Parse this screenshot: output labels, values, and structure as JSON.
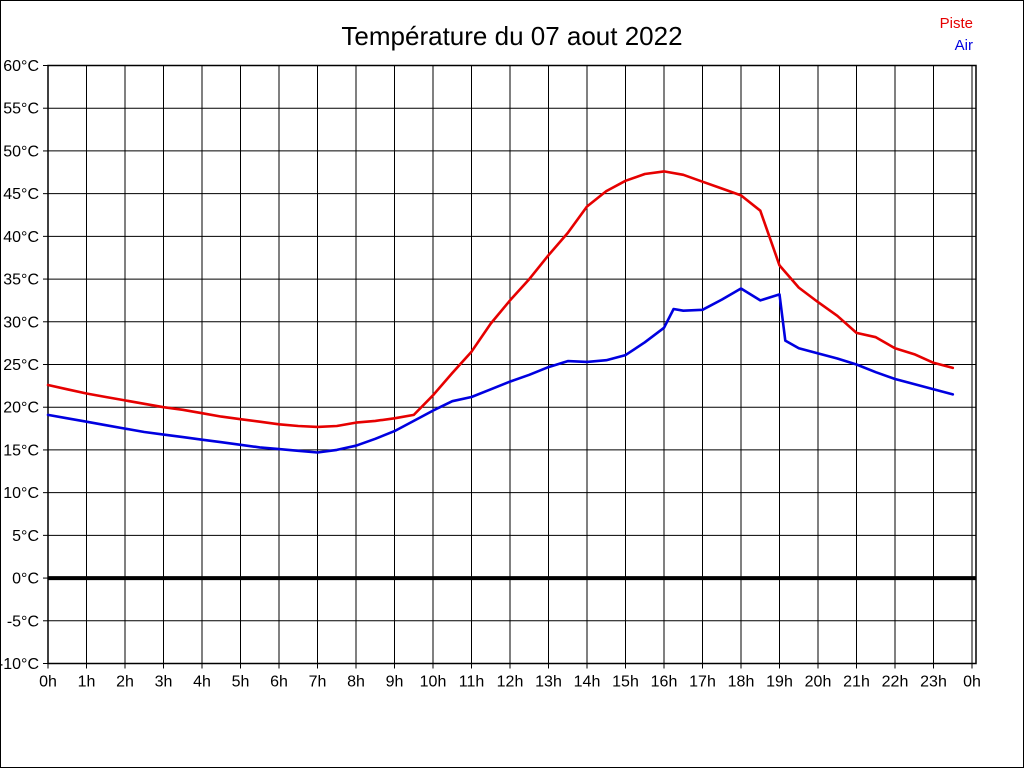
{
  "title": "Température du 07 aout 2022",
  "legend": [
    {
      "label": "Piste",
      "color": "#e60000"
    },
    {
      "label": "Air",
      "color": "#0000e0"
    }
  ],
  "colors": {
    "background": "#ffffff",
    "grid": "#000000",
    "axis": "#000000",
    "zero_line": "#000000",
    "piste": "#e60000",
    "air": "#0000e0"
  },
  "chart_data": {
    "type": "line",
    "title": "Température du 07 aout 2022",
    "xlabel": "",
    "ylabel": "",
    "x_unit": "h",
    "y_unit": "°C",
    "xlim": [
      0,
      24
    ],
    "ylim": [
      -10,
      60
    ],
    "grid": true,
    "zero_line_bold": true,
    "legend_position": "top-right",
    "y_ticks": [
      60,
      55,
      50,
      45,
      40,
      35,
      30,
      25,
      20,
      15,
      10,
      5,
      0,
      -5,
      -10
    ],
    "y_tick_labels": [
      "60°C",
      "55°C",
      "50°C",
      "45°C",
      "40°C",
      "35°C",
      "30°C",
      "25°C",
      "20°C",
      "15°C",
      "10°C",
      "5°C",
      "0°C",
      "-5°C",
      "-10°C"
    ],
    "x_ticks": [
      0,
      1,
      2,
      3,
      4,
      5,
      6,
      7,
      8,
      9,
      10,
      11,
      12,
      13,
      14,
      15,
      16,
      17,
      18,
      19,
      20,
      21,
      22,
      23,
      24
    ],
    "x_tick_labels": [
      "0h",
      "1h",
      "2h",
      "3h",
      "4h",
      "5h",
      "6h",
      "7h",
      "8h",
      "9h",
      "10h",
      "11h",
      "12h",
      "13h",
      "14h",
      "15h",
      "16h",
      "17h",
      "18h",
      "19h",
      "20h",
      "21h",
      "22h",
      "23h",
      "0h"
    ],
    "series": [
      {
        "name": "Piste",
        "color": "#e60000",
        "x": [
          0,
          0.5,
          1,
          1.5,
          2,
          2.5,
          3,
          3.5,
          4,
          4.5,
          5,
          5.5,
          6,
          6.5,
          7,
          7.5,
          8,
          8.5,
          9,
          9.5,
          10,
          10.5,
          11,
          11.5,
          12,
          12.5,
          13,
          13.5,
          14,
          14.5,
          15,
          15.5,
          16,
          16.5,
          17,
          17.5,
          18,
          18.5,
          19,
          19.5,
          20,
          20.5,
          21,
          21.5,
          22,
          22.5,
          23,
          23.5
        ],
        "values": [
          22.6,
          22.1,
          21.6,
          21.2,
          20.8,
          20.4,
          20.0,
          19.7,
          19.3,
          18.9,
          18.6,
          18.3,
          18.0,
          17.8,
          17.7,
          17.8,
          18.2,
          18.4,
          18.7,
          19.1,
          21.4,
          24.0,
          26.5,
          29.8,
          32.5,
          35.0,
          37.8,
          40.4,
          43.5,
          45.3,
          46.5,
          47.3,
          47.6,
          47.2,
          46.4,
          45.6,
          44.8,
          43.0,
          36.6,
          34.0,
          32.3,
          30.7,
          28.7,
          28.2,
          26.9,
          26.2,
          25.2,
          24.6
        ]
      },
      {
        "name": "Air",
        "color": "#0000e0",
        "x": [
          0,
          0.5,
          1,
          1.5,
          2,
          2.5,
          3,
          3.5,
          4,
          4.5,
          5,
          5.5,
          6,
          6.5,
          7,
          7.5,
          8,
          8.5,
          9,
          9.5,
          10,
          10.5,
          11,
          11.5,
          12,
          12.5,
          13,
          13.5,
          14,
          14.5,
          15,
          15.5,
          16,
          16.25,
          16.5,
          17,
          17.5,
          18,
          18.5,
          19,
          19.15,
          19.5,
          20,
          20.5,
          21,
          21.5,
          22,
          22.5,
          23,
          23.5
        ],
        "values": [
          19.1,
          18.7,
          18.3,
          17.9,
          17.5,
          17.1,
          16.8,
          16.5,
          16.2,
          15.9,
          15.6,
          15.3,
          15.1,
          14.9,
          14.7,
          15.0,
          15.5,
          16.3,
          17.2,
          18.4,
          19.6,
          20.7,
          21.2,
          22.1,
          23.0,
          23.8,
          24.7,
          25.4,
          25.3,
          25.5,
          26.1,
          27.6,
          29.3,
          31.5,
          31.3,
          31.4,
          32.6,
          33.9,
          32.5,
          33.2,
          27.8,
          26.9,
          26.3,
          25.7,
          25.0,
          24.1,
          23.3,
          22.7,
          22.1,
          21.5
        ]
      }
    ]
  }
}
